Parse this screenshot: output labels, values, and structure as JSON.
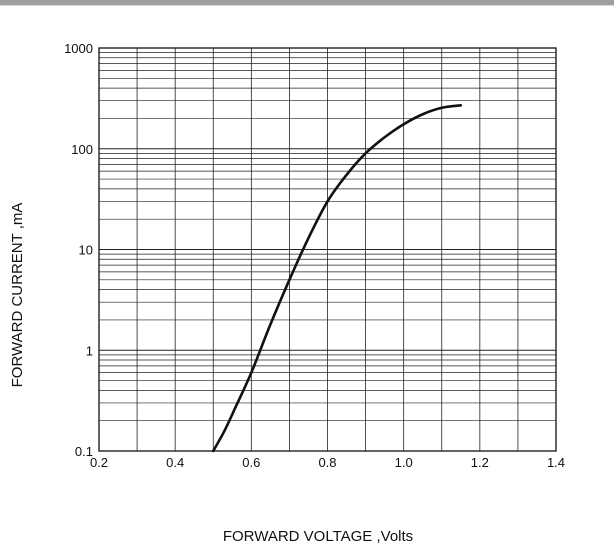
{
  "chart_data": {
    "type": "line",
    "title": "",
    "xlabel": "FORWARD VOLTAGE ,Volts",
    "ylabel": "FORWARD CURRENT ,mA",
    "x_scale": "linear",
    "y_scale": "log",
    "xlim": [
      0.2,
      1.4
    ],
    "ylim": [
      0.1,
      1000
    ],
    "x_ticks": [
      0.2,
      0.4,
      0.6,
      0.8,
      1.0,
      1.2,
      1.4
    ],
    "x_tick_labels": [
      "0.2",
      "0.4",
      "0.6",
      "0.8",
      "1.0",
      "1.2",
      "1.4"
    ],
    "y_ticks": [
      0.1,
      1,
      10,
      100,
      1000
    ],
    "y_tick_labels": [
      "0.1",
      "1",
      "10",
      "100",
      "1000"
    ],
    "grid": true,
    "x_minor_grid_step": 0.1,
    "y_minor_grid": "1-9 per decade",
    "series": [
      {
        "name": "",
        "color": "#111111",
        "x": [
          0.5,
          0.53,
          0.56,
          0.6,
          0.65,
          0.7,
          0.75,
          0.8,
          0.85,
          0.9,
          0.95,
          1.0,
          1.05,
          1.1,
          1.15
        ],
        "y": [
          0.1,
          0.16,
          0.28,
          0.6,
          1.8,
          5,
          13,
          30,
          55,
          90,
          130,
          175,
          220,
          255,
          270
        ]
      }
    ]
  }
}
